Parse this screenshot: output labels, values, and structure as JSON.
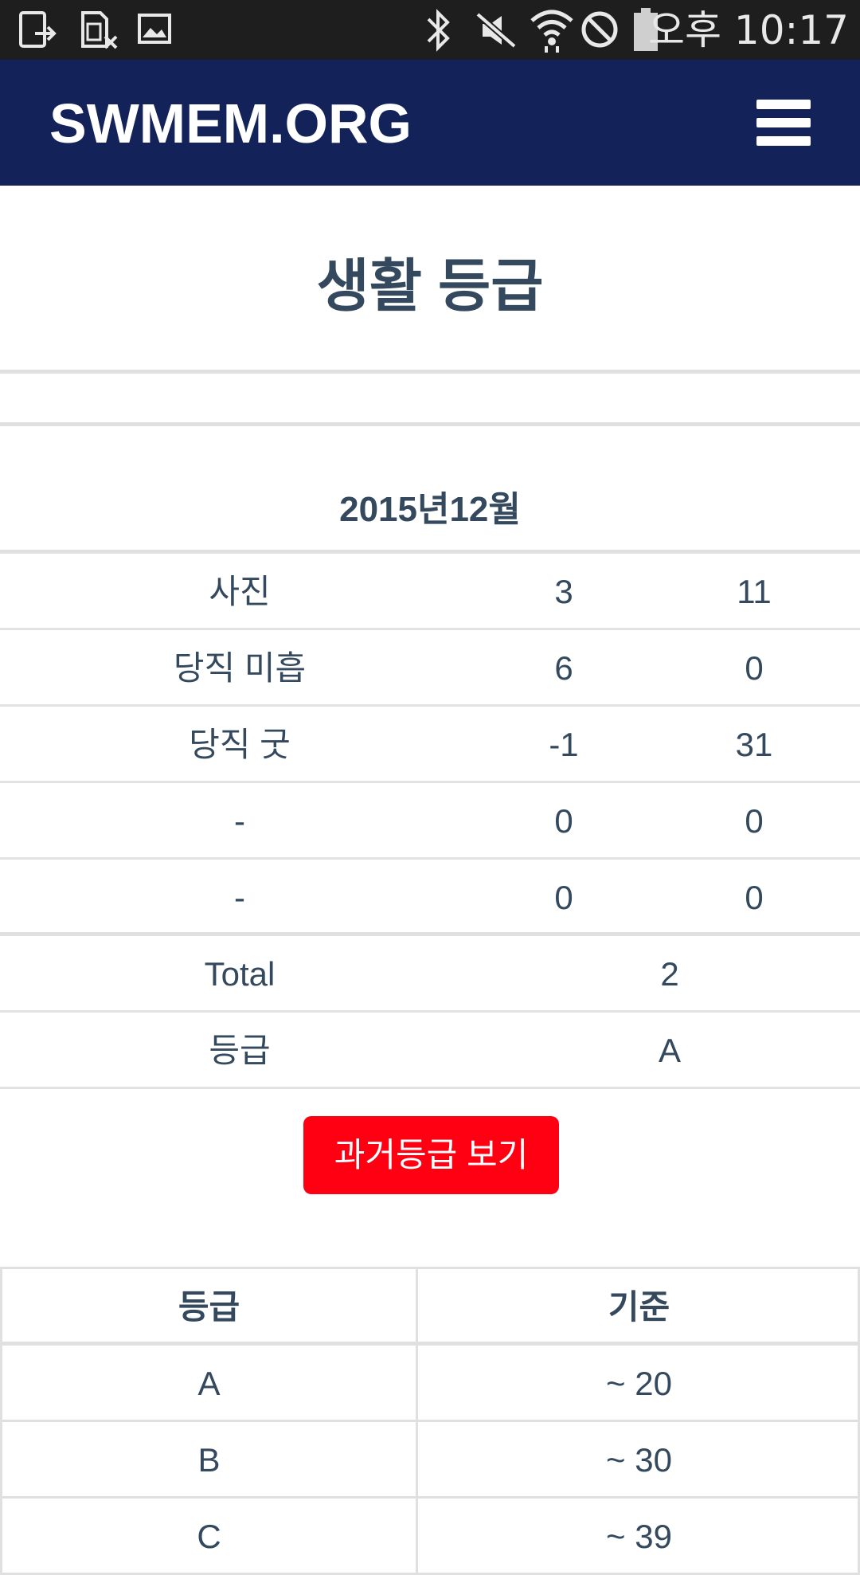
{
  "status_bar": {
    "time": "오후 10:17",
    "icons": [
      "screenshot-notification-icon",
      "sim-error-icon",
      "image-notification-icon",
      "bluetooth-icon",
      "mute-icon",
      "wifi-icon",
      "do-not-disturb-icon",
      "battery-icon"
    ]
  },
  "header": {
    "brand": "SWMEM.ORG",
    "menu_icon": "hamburger-menu-icon"
  },
  "page": {
    "title": "생활 등급",
    "month": "2015년12월"
  },
  "score_table": {
    "rows": [
      {
        "label": "사진",
        "a": "3",
        "b": "11"
      },
      {
        "label": "당직 미흡",
        "a": "6",
        "b": "0"
      },
      {
        "label": "당직 굿",
        "a": "-1",
        "b": "31"
      },
      {
        "label": "-",
        "a": "0",
        "b": "0"
      },
      {
        "label": "-",
        "a": "0",
        "b": "0"
      }
    ],
    "total_label": "Total",
    "total_value": "2",
    "grade_label": "등급",
    "grade_value": "A"
  },
  "button": {
    "label": "과거등급 보기",
    "color": "#ff0012"
  },
  "criteria_table": {
    "header": {
      "grade": "등급",
      "criteria": "기준"
    },
    "rows": [
      {
        "grade": "A",
        "criteria": "~ 20"
      },
      {
        "grade": "B",
        "criteria": "~ 30"
      },
      {
        "grade": "C",
        "criteria": "~ 39"
      }
    ]
  },
  "colors": {
    "header_bg": "#13235a",
    "text": "#34495e",
    "status_bar_bg": "#1e1e1e"
  }
}
